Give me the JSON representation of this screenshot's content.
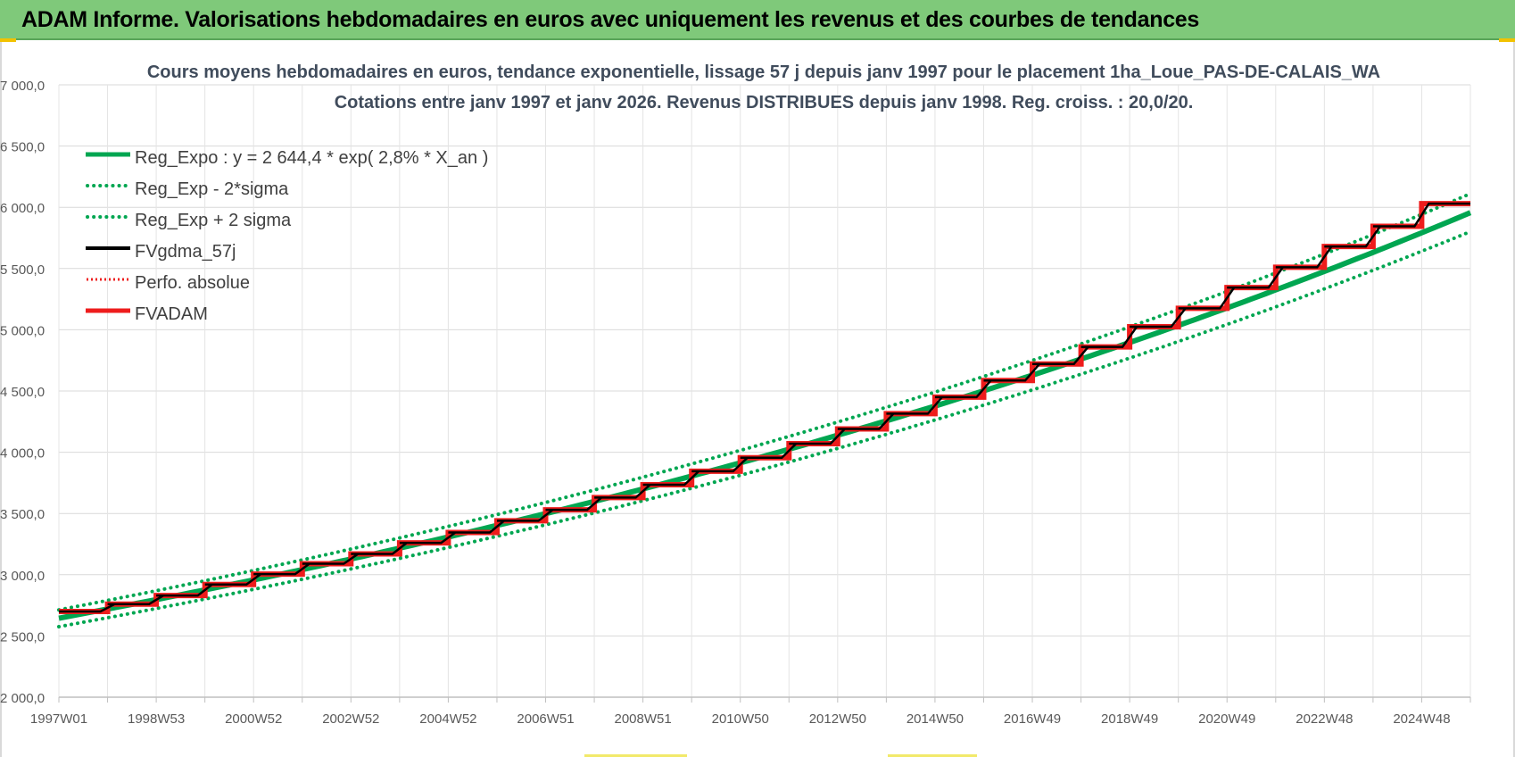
{
  "header": {
    "title": "ADAM Informe. Valorisations hebdomadaires en euros avec uniquement les revenus et des courbes de tendances"
  },
  "colors": {
    "header_bg": "#7fc97a",
    "green": "#00a651",
    "red": "#ee1c1c",
    "black": "#000000",
    "grid": "#d9d9d9",
    "axis_text": "#595959"
  },
  "chart_data": {
    "type": "line",
    "title": "Cours moyens hebdomadaires en euros, tendance exponentielle, lissage 57 j depuis janv 1997  pour le placement 1ha_Loue_PAS-DE-CALAIS_WA",
    "subtitle": "Cotations entre janv 1997 et janv 2026. Revenus DISTRIBUES depuis janv 1998.  Reg. croiss. : 20,0/20.",
    "xlabel": "",
    "ylabel": "",
    "x_range": [
      1997.0,
      2026.0
    ],
    "ylim": [
      2000,
      7000
    ],
    "y_ticks": [
      2000,
      2500,
      3000,
      3500,
      4000,
      4500,
      5000,
      5500,
      6000,
      6500,
      7000
    ],
    "y_tick_labels": [
      "2 000,0",
      "2 500,0",
      "3 000,0",
      "3 500,0",
      "4 000,0",
      "4 500,0",
      "5 000,0",
      "5 500,0",
      "6 000,0",
      "6 500,0",
      "7 000,0"
    ],
    "x_tick_labels": [
      "1997W01",
      "1998W53",
      "2000W52",
      "2002W52",
      "2004W52",
      "2006W51",
      "2008W51",
      "2010W50",
      "2012W50",
      "2014W50",
      "2016W49",
      "2018W49",
      "2020W49",
      "2022W48",
      "2024W48"
    ],
    "x_tick_years": [
      1997,
      1999,
      2001,
      2003,
      2005,
      2007,
      2009,
      2011,
      2013,
      2015,
      2017,
      2019,
      2021,
      2023,
      2025
    ],
    "grid": true,
    "legend_position": "top-left",
    "regression": {
      "a": 2644.4,
      "growth_rate": 0.028,
      "sigma_band": 0.026
    },
    "series": [
      {
        "name": "Reg_Expo : y = 2 644,4 * exp( 2,8% *  X_an )",
        "color": "#00a651",
        "style": "solid"
      },
      {
        "name": "Reg_Exp - 2*sigma",
        "color": "#00a651",
        "style": "dotted"
      },
      {
        "name": "Reg_Exp + 2 sigma",
        "color": "#00a651",
        "style": "dotted"
      },
      {
        "name": "FVgdma_57j",
        "color": "#000000",
        "style": "solid"
      },
      {
        "name": "Perfo. absolue",
        "color": "#ee1c1c",
        "style": "dotted"
      },
      {
        "name": "FVADAM",
        "color": "#ee1c1c",
        "style": "solid",
        "step_years": [
          1997,
          1998,
          1999,
          2000,
          2001,
          2002,
          2003,
          2004,
          2005,
          2006,
          2007,
          2008,
          2009,
          2010,
          2011,
          2012,
          2013,
          2014,
          2015,
          2016,
          2017,
          2018,
          2019,
          2020,
          2021,
          2022,
          2023,
          2024,
          2025
        ],
        "step_values": [
          2700,
          2760,
          2830,
          2920,
          3005,
          3090,
          3170,
          3260,
          3345,
          3440,
          3530,
          3630,
          3735,
          3845,
          3955,
          4070,
          4190,
          4315,
          4450,
          4585,
          4720,
          4860,
          5025,
          5175,
          5345,
          5510,
          5680,
          5845,
          6030
        ]
      }
    ]
  }
}
